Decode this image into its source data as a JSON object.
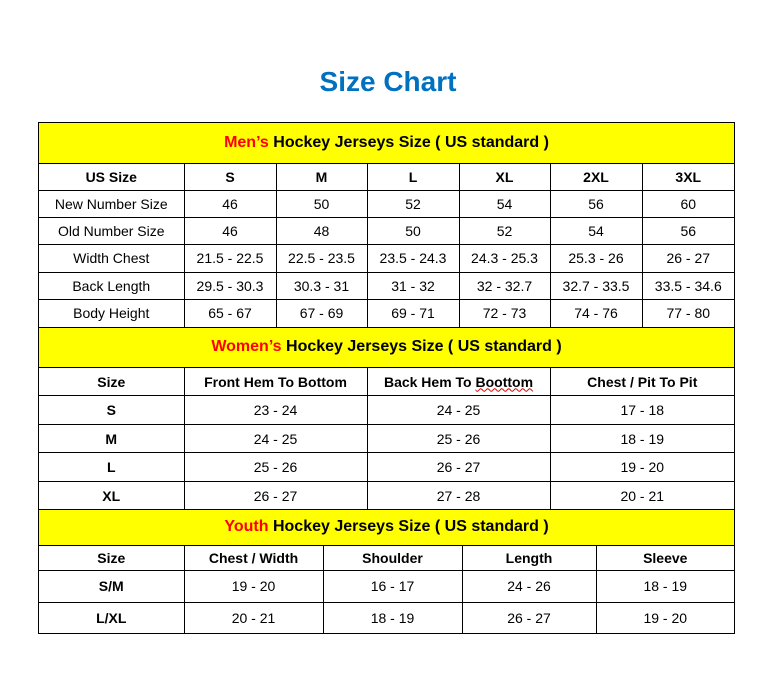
{
  "title": "Size Chart",
  "colors": {
    "title": "#0070C0",
    "section_bg": "#FFFF00",
    "highlight": "#FF0000"
  },
  "mens": {
    "heading_red": "Men’s",
    "heading_rest": " Hockey Jerseys Size ( US standard )",
    "columns": [
      "US Size",
      "S",
      "M",
      "L",
      "XL",
      "2XL",
      "3XL"
    ],
    "rows": [
      [
        "New Number Size",
        "46",
        "50",
        "52",
        "54",
        "56",
        "60"
      ],
      [
        "Old Number Size",
        "46",
        "48",
        "50",
        "52",
        "54",
        "56"
      ],
      [
        "Width Chest",
        "21.5 - 22.5",
        "22.5 - 23.5",
        "23.5 - 24.3",
        "24.3 - 25.3",
        "25.3 - 26",
        "26 - 27"
      ],
      [
        "Back Length",
        "29.5 - 30.3",
        "30.3 - 31",
        "31 - 32",
        "32 - 32.7",
        "32.7 - 33.5",
        "33.5 - 34.6"
      ],
      [
        "Body Height",
        "65 - 67",
        "67 - 69",
        "69 - 71",
        "72 - 73",
        "74 - 76",
        "77 - 80"
      ]
    ]
  },
  "womens": {
    "heading_red": "Women’s",
    "heading_rest": " Hockey Jerseys Size ( US standard )",
    "columns": [
      "Size",
      "Front Hem To Bottom",
      "Back Hem To ",
      "Chest / Pit To Pit"
    ],
    "columns_misspelled_word": "Boottom",
    "rows": [
      [
        "S",
        "23 - 24",
        "24 - 25",
        "17 - 18"
      ],
      [
        "M",
        "24 - 25",
        "25 - 26",
        "18 - 19"
      ],
      [
        "L",
        "25 - 26",
        "26 - 27",
        "19 - 20"
      ],
      [
        "XL",
        "26 - 27",
        "27 - 28",
        "20 - 21"
      ]
    ]
  },
  "youth": {
    "heading_red": "Youth",
    "heading_rest": " Hockey Jerseys Size ( US standard )",
    "columns": [
      "Size",
      "Chest / Width",
      "Shoulder",
      "Length",
      "Sleeve"
    ],
    "rows": [
      [
        "S/M",
        "19 - 20",
        "16 - 17",
        "24 - 26",
        "18 - 19"
      ],
      [
        "L/XL",
        "20 - 21",
        "18 - 19",
        "26 - 27",
        "19 - 20"
      ]
    ]
  }
}
